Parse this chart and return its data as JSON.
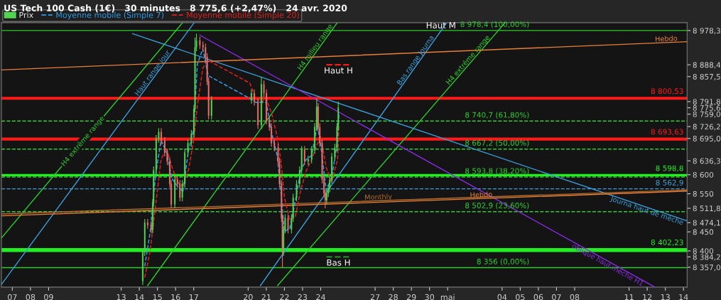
{
  "chart_data": {
    "type": "candlestick",
    "title": "US Tech 100 Cash (1€)   30 minutes   8 775,6 (+2,47%)   24 avr. 2020",
    "legend": "top left",
    "xlim": [
      "2020-04-06T09:36",
      "2020-05-14T04:48"
    ],
    "xticks": [
      {
        "value": "2020-04-07",
        "label": "07"
      },
      {
        "value": "2020-04-08",
        "label": "08"
      },
      {
        "value": "2020-04-09",
        "label": "09"
      },
      {
        "value": "2020-04-13",
        "label": "13"
      },
      {
        "value": "2020-04-14",
        "label": "14"
      },
      {
        "value": "2020-04-15",
        "label": "15"
      },
      {
        "value": "2020-04-16",
        "label": "16"
      },
      {
        "value": "2020-04-17",
        "label": "17"
      },
      {
        "value": "2020-04-20",
        "label": "20"
      },
      {
        "value": "2020-04-21",
        "label": "21"
      },
      {
        "value": "2020-04-22",
        "label": "22"
      },
      {
        "value": "2020-04-23",
        "label": "23"
      },
      {
        "value": "2020-04-24",
        "label": "24"
      },
      {
        "value": "2020-04-27",
        "label": "27"
      },
      {
        "value": "2020-04-28",
        "label": "28"
      },
      {
        "value": "2020-04-29",
        "label": "29"
      },
      {
        "value": "2020-04-30",
        "label": "30"
      },
      {
        "value": "2020-05-01",
        "label": "mai"
      },
      {
        "value": "2020-05-04",
        "label": "04"
      },
      {
        "value": "2020-05-05",
        "label": "05"
      },
      {
        "value": "2020-05-06",
        "label": "06"
      },
      {
        "value": "2020-05-07",
        "label": "07"
      },
      {
        "value": "2020-05-08",
        "label": "08"
      },
      {
        "value": "2020-05-11",
        "label": "11"
      },
      {
        "value": "2020-05-12",
        "label": "12"
      },
      {
        "value": "2020-05-13",
        "label": "13"
      },
      {
        "value": "2020-05-14",
        "label": "14"
      }
    ],
    "ylim": [
      8305,
      8999
    ],
    "yticks": [
      {
        "value": 8357.0,
        "label": "8 357,0"
      },
      {
        "value": 8384.2,
        "label": "8 384,2"
      },
      {
        "value": 8400,
        "label": "8 400"
      },
      {
        "value": 8450,
        "label": "8 450"
      },
      {
        "value": 8474.1,
        "label": "8 474,1"
      },
      {
        "value": 8511.8,
        "label": "8 511,8"
      },
      {
        "value": 8550,
        "label": "8 550"
      },
      {
        "value": 8600,
        "label": "8 600"
      },
      {
        "value": 8636.3,
        "label": "8 636,3"
      },
      {
        "value": 8695.0,
        "label": "8 695,0"
      },
      {
        "value": 8726.2,
        "label": "8 726,2"
      },
      {
        "value": 8759.0,
        "label": "8 759,0"
      },
      {
        "value": 8775.6,
        "label": "8 775,6"
      },
      {
        "value": 8791.8,
        "label": "8 791,8"
      },
      {
        "value": 8857.5,
        "label": "8 857,5"
      },
      {
        "value": 8888.4,
        "label": "8 888,4"
      },
      {
        "value": 8978.3,
        "label": "8 978,3"
      }
    ],
    "series": [
      {
        "name": "Prix",
        "color": "#52d452",
        "x": [
          "2020-04-14T04:34",
          "2020-04-14T07:12",
          "2020-04-14T11:02",
          "2020-04-14T15:50",
          "2020-04-14T17:46",
          "2020-04-14T18:58",
          "2020-04-14T22:19",
          "2020-04-15T01:41",
          "2020-04-15T05:02",
          "2020-04-15T09:36",
          "2020-04-15T12:58",
          "2020-04-15T16:19",
          "2020-04-15T18:14",
          "2020-04-15T23:02",
          "2020-04-16T02:24",
          "2020-04-16T05:46",
          "2020-04-16T08:53",
          "2020-04-16T12:14",
          "2020-04-16T16:19",
          "2020-04-16T20:53",
          "2020-04-17T00:14",
          "2020-04-17T01:41",
          "2020-04-17T03:36",
          "2020-04-17T08:10",
          "2020-04-17T12:14",
          "2020-04-17T15:36",
          "2020-04-17T17:46",
          "2020-04-17T19:41",
          "2020-04-17T23:31",
          "2020-04-20T04:19",
          "2020-04-20T08:10",
          "2020-04-20T12:58",
          "2020-04-20T17:31",
          "2020-04-20T20:53",
          "2020-04-21T00:14",
          "2020-04-21T04:05",
          "2020-04-21T06:43",
          "2020-04-21T10:48",
          "2020-04-21T15:36",
          "2020-04-21T17:31",
          "2020-04-21T20:10",
          "2020-04-21T21:22",
          "2020-04-21T22:48",
          "2020-04-22T00:58",
          "2020-04-22T04:48",
          "2020-04-22T09:22",
          "2020-04-22T11:31",
          "2020-04-22T16:05",
          "2020-04-22T20:10",
          "2020-04-22T22:48",
          "2020-04-23T02:38",
          "2020-04-23T07:26",
          "2020-04-23T12:00",
          "2020-04-23T16:05",
          "2020-04-23T18:43",
          "2020-04-23T20:38",
          "2020-04-23T22:48",
          "2020-04-24T01:55",
          "2020-04-24T04:19",
          "2020-04-24T06:00",
          "2020-04-24T07:55",
          "2020-04-24T10:05",
          "2020-04-24T12:00",
          "2020-04-24T14:38",
          "2020-04-24T18:43",
          "2020-04-24T21:36",
          "2020-04-24T23:17"
        ],
        "ohlc": [
          [
            8321,
            8407,
            8311,
            8397
          ],
          [
            8397,
            8484,
            8387,
            8474
          ],
          [
            8474,
            8484,
            8458,
            8468
          ],
          [
            8468,
            8478,
            8446,
            8456
          ],
          [
            8456,
            8537,
            8446,
            8527
          ],
          [
            8527,
            8622,
            8517,
            8612
          ],
          [
            8612,
            8704,
            8602,
            8694
          ],
          [
            8694,
            8722,
            8684,
            8712
          ],
          [
            8712,
            8722,
            8679,
            8689
          ],
          [
            8689,
            8699,
            8648,
            8658
          ],
          [
            8658,
            8668,
            8625,
            8635
          ],
          [
            8635,
            8645,
            8566,
            8576
          ],
          [
            8576,
            8586,
            8512,
            8522
          ],
          [
            8522,
            8597,
            8512,
            8587
          ],
          [
            8587,
            8597,
            8566,
            8576
          ],
          [
            8576,
            8586,
            8530,
            8540
          ],
          [
            8540,
            8586,
            8530,
            8576
          ],
          [
            8576,
            8668,
            8566,
            8658
          ],
          [
            8658,
            8693,
            8648,
            8683
          ],
          [
            8683,
            8717,
            8673,
            8707
          ],
          [
            8707,
            8783,
            8697,
            8773
          ],
          [
            8773,
            8960,
            8763,
            8934
          ],
          [
            8934,
            8970,
            8924,
            8952
          ],
          [
            8952,
            8962,
            8930,
            8940
          ],
          [
            8940,
            8950,
            8924,
            8934
          ],
          [
            8934,
            8944,
            8899,
            8909
          ],
          [
            8909,
            8919,
            8835,
            8845
          ],
          [
            8845,
            8855,
            8745,
            8755
          ],
          [
            8755,
            8806,
            8745,
            8796
          ],
          [
            8796,
            8824,
            8786,
            8814
          ],
          [
            8814,
            8824,
            8781,
            8791
          ],
          [
            8791,
            8801,
            8720,
            8730
          ],
          [
            8730,
            8857,
            8720,
            8837
          ],
          [
            8837,
            8847,
            8804,
            8814
          ],
          [
            8814,
            8824,
            8732,
            8742
          ],
          [
            8742,
            8752,
            8715,
            8725
          ],
          [
            8725,
            8735,
            8673,
            8683
          ],
          [
            8683,
            8693,
            8661,
            8671
          ],
          [
            8671,
            8681,
            8625,
            8635
          ],
          [
            8635,
            8645,
            8566,
            8576
          ],
          [
            8576,
            8586,
            8476,
            8486
          ],
          [
            8486,
            8496,
            8357,
            8397
          ],
          [
            8397,
            8466,
            8387,
            8456
          ],
          [
            8456,
            8496,
            8446,
            8486
          ],
          [
            8486,
            8496,
            8446,
            8456
          ],
          [
            8456,
            8496,
            8446,
            8486
          ],
          [
            8486,
            8550,
            8476,
            8540
          ],
          [
            8540,
            8586,
            8530,
            8576
          ],
          [
            8576,
            8622,
            8566,
            8612
          ],
          [
            8612,
            8675,
            8602,
            8665
          ],
          [
            8665,
            8675,
            8625,
            8635
          ],
          [
            8635,
            8650,
            8625,
            8640
          ],
          [
            8640,
            8675,
            8630,
            8665
          ],
          [
            8665,
            8735,
            8655,
            8725
          ],
          [
            8725,
            8800,
            8715,
            8778
          ],
          [
            8778,
            8788,
            8715,
            8725
          ],
          [
            8725,
            8735,
            8673,
            8683
          ],
          [
            8683,
            8693,
            8577,
            8587
          ],
          [
            8587,
            8597,
            8541,
            8551
          ],
          [
            8551,
            8561,
            8512,
            8533
          ],
          [
            8533,
            8561,
            8523,
            8551
          ],
          [
            8551,
            8574,
            8541,
            8564
          ],
          [
            8564,
            8597,
            8554,
            8587
          ],
          [
            8587,
            8657,
            8577,
            8647
          ],
          [
            8647,
            8681,
            8637,
            8671
          ],
          [
            8671,
            8735,
            8661,
            8725
          ],
          [
            8725,
            8792,
            8715,
            8776
          ]
        ],
        "colors": [
          "#52d452",
          "#52d452",
          "#e8706b",
          "#e8706b",
          "#52d452",
          "#52d452",
          "#52d452",
          "#52d452",
          "#e8706b",
          "#e8706b",
          "#e8706b",
          "#e8706b",
          "#e8706b",
          "#52d452",
          "#e8706b",
          "#e8706b",
          "#52d452",
          "#52d452",
          "#52d452",
          "#52d452",
          "#52d452",
          "#52d452",
          "#52d452",
          "#e8706b",
          "#e8706b",
          "#e8706b",
          "#e8706b",
          "#e8706b",
          "#52d452",
          "#52d452",
          "#e8706b",
          "#e8706b",
          "#52d452",
          "#e8706b",
          "#e8706b",
          "#e8706b",
          "#e8706b",
          "#e8706b",
          "#e8706b",
          "#e8706b",
          "#e8706b",
          "#e8706b",
          "#52d452",
          "#52d452",
          "#e8706b",
          "#52d452",
          "#52d452",
          "#52d452",
          "#52d452",
          "#52d452",
          "#e8706b",
          "#52d452",
          "#52d452",
          "#52d452",
          "#52d452",
          "#e8706b",
          "#e8706b",
          "#e8706b",
          "#e8706b",
          "#e8706b",
          "#52d452",
          "#52d452",
          "#52d452",
          "#52d452",
          "#52d452",
          "#52d452",
          "#52d452"
        ]
      },
      {
        "name": "Moyenne mobile (Simple 7)",
        "type": "line",
        "line_style": "dashed",
        "color": "#2e9be6",
        "x": [
          "2020-04-14T07:12",
          "2020-04-14T14:24",
          "2020-04-14T21:36",
          "2020-04-15T04:48",
          "2020-04-15T12:00",
          "2020-04-15T19:12",
          "2020-04-16T02:24",
          "2020-04-16T09:36",
          "2020-04-16T16:48",
          "2020-04-17T00:00",
          "2020-04-17T04:48",
          "2020-04-17T12:00",
          "2020-04-17T19:12",
          "2020-04-20T02:24",
          "2020-04-20T09:36",
          "2020-04-20T16:48",
          "2020-04-21T00:00",
          "2020-04-21T07:12",
          "2020-04-21T14:24",
          "2020-04-21T19:12",
          "2020-04-22T00:00",
          "2020-04-22T07:12",
          "2020-04-22T14:24",
          "2020-04-22T21:36",
          "2020-04-23T04:48",
          "2020-04-23T12:00",
          "2020-04-23T19:30",
          "2020-04-24T00:00",
          "2020-04-24T07:12",
          "2020-04-24T14:24",
          "2020-04-24T22:20",
          "2020-04-25T00:05"
        ],
        "values": [
          8360,
          8450,
          8600,
          8690,
          8660,
          8590,
          8570,
          8555,
          8660,
          8720,
          8890,
          8930,
          8860,
          8800,
          8790,
          8790,
          8790,
          8710,
          8650,
          8560,
          8450,
          8460,
          8530,
          8610,
          8640,
          8650,
          8730,
          8680,
          8560,
          8590,
          8690,
          8759
        ]
      },
      {
        "name": "Moyenne mobile (Simple 20)",
        "type": "line",
        "line_style": "dashed",
        "color": "#e0201e",
        "x": [
          "2020-04-14T07:12",
          "2020-04-14T14:24",
          "2020-04-14T21:36",
          "2020-04-15T04:48",
          "2020-04-15T12:00",
          "2020-04-15T19:12",
          "2020-04-16T02:24",
          "2020-04-16T09:36",
          "2020-04-16T16:48",
          "2020-04-17T00:00",
          "2020-04-17T04:48",
          "2020-04-17T12:00",
          "2020-04-17T19:12",
          "2020-04-20T02:24",
          "2020-04-20T09:36",
          "2020-04-20T16:48",
          "2020-04-21T00:00",
          "2020-04-21T07:12",
          "2020-04-21T14:24",
          "2020-04-21T19:12",
          "2020-04-22T00:00",
          "2020-04-22T07:12",
          "2020-04-22T14:24",
          "2020-04-22T21:36",
          "2020-04-23T04:48",
          "2020-04-23T12:00",
          "2020-04-23T19:30",
          "2020-04-24T00:00",
          "2020-04-24T07:12",
          "2020-04-24T14:24",
          "2020-04-24T22:20",
          "2020-04-25T00:05"
        ],
        "values": [
          8330,
          8400,
          8520,
          8640,
          8670,
          8620,
          8580,
          8570,
          8610,
          8690,
          8780,
          8880,
          8900,
          8840,
          8800,
          8790,
          8800,
          8760,
          8700,
          8640,
          8540,
          8480,
          8490,
          8560,
          8610,
          8640,
          8680,
          8700,
          8620,
          8580,
          8640,
          8726
        ]
      },
      {
        "name": "H4 extrême range",
        "type": "line",
        "line_style": "solid",
        "color": "#2ecc2e",
        "x": [
          "2020-04-06T09:36",
          "2020-04-16T08:53"
        ],
        "values": [
          8434,
          8998
        ]
      },
      {
        "name": "Haut range jour",
        "type": "line",
        "line_style": "solid",
        "color": "#3aa0dc",
        "x": [
          "2020-04-06T09:36",
          "2020-04-17T00:14"
        ],
        "values": [
          8312,
          8998
        ]
      },
      {
        "name": "H4 milieu range",
        "type": "line",
        "line_style": "solid",
        "color": "#2ecc2e",
        "x": [
          "2020-04-14T11:02",
          "2020-04-24T21:36"
        ],
        "values": [
          8309,
          8998
        ]
      },
      {
        "name": "Bas range Journa",
        "type": "line",
        "line_style": "solid",
        "color": "#3aa0dc",
        "x": [
          "2020-04-20T16:19",
          "2020-04-30T22:19"
        ],
        "values": [
          8309,
          8998
        ]
      },
      {
        "name": "H4 extrême range",
        "type": "line",
        "line_style": "solid",
        "color": "#2ecc2e",
        "x": [
          "2020-04-21T14:53",
          "2020-05-04T03:36"
        ],
        "values": [
          8309,
          8998
        ]
      },
      {
        "name": "Journa haut de mèche",
        "type": "line",
        "line_style": "solid",
        "color": "#3aa0dc",
        "x": [
          "2020-04-13T15:07",
          "2020-05-14T04:34"
        ],
        "values": [
          8970,
          8479
        ]
      },
      {
        "name": "oblique haut mèche H1",
        "type": "line",
        "line_style": "solid",
        "color": "#8a2be2",
        "x": [
          "2020-04-17T08:10",
          "2020-05-12T10:05"
        ],
        "values": [
          8966,
          8305
        ]
      },
      {
        "name": "Hebdo",
        "type": "line",
        "line_style": "solid",
        "color": "#e8803a",
        "x": [
          "2020-04-06T09:36",
          "2020-05-14T04:34"
        ],
        "values": [
          8875,
          8949
        ]
      },
      {
        "name": "Monthly",
        "type": "line",
        "line_style": "solid",
        "color": "#b06a2a",
        "x": [
          "2020-04-06T09:36",
          "2020-05-14T04:34"
        ],
        "values": [
          8497,
          8560
        ]
      },
      {
        "name": "Hebdo",
        "type": "line",
        "line_style": "solid",
        "color": "#e8803a",
        "x": [
          "2020-04-06T09:36",
          "2020-05-14T04:34"
        ],
        "values": [
          8492,
          8557
        ]
      }
    ],
    "ref_lines": [
      {
        "axis": "y",
        "value": 8978.4,
        "label": "8 978,4 (100,00%)",
        "color": "#2ecc2e",
        "line_style": "solid"
      },
      {
        "axis": "y",
        "value": 8800.53,
        "label": "8 800,53",
        "color": "#ff1a1a",
        "line_style": "solid"
      },
      {
        "axis": "y",
        "value": 8740.7,
        "label": "8 740,7 (61,80%)",
        "color": "#2ecc2e",
        "line_style": "dashed"
      },
      {
        "axis": "y",
        "value": 8693.63,
        "label": "8 693,63",
        "color": "#ff1a1a",
        "line_style": "solid"
      },
      {
        "axis": "y",
        "value": 8667.2,
        "label": "8 667,2 (50,00%)",
        "color": "#2ecc2e",
        "line_style": "dashed"
      },
      {
        "axis": "y",
        "value": 8598.8,
        "label": "8 598,8",
        "color": "#22ee22",
        "line_style": "solid"
      },
      {
        "axis": "y",
        "value": 8593.8,
        "label": "8 593,8 (38,20%)",
        "color": "#2ecc2e",
        "line_style": "dashed"
      },
      {
        "axis": "y",
        "value": 8562.9,
        "label": "8 562,9",
        "color": "#3aa0dc",
        "line_style": "dashed"
      },
      {
        "axis": "y",
        "value": 8502.9,
        "label": "8 502,9 (23,60%)",
        "color": "#2ecc2e",
        "line_style": "dashed"
      },
      {
        "axis": "y",
        "value": 8402.23,
        "label": "8 402,23",
        "color": "#22ee22",
        "line_style": "solid"
      },
      {
        "axis": "y",
        "value": 8356,
        "label": "8 356 (0,00%)",
        "color": "#2ecc2e",
        "line_style": "solid"
      },
      {
        "axis": "y",
        "value": 8888.4,
        "label": "Haut H",
        "color": "#ff1a1a",
        "line_style": "dashed"
      },
      {
        "axis": "y",
        "value": 8384.2,
        "label": "Bas H",
        "color": "#1f8a1f",
        "line_style": "dashed"
      }
    ],
    "annotations": [
      "Haut M"
    ]
  }
}
